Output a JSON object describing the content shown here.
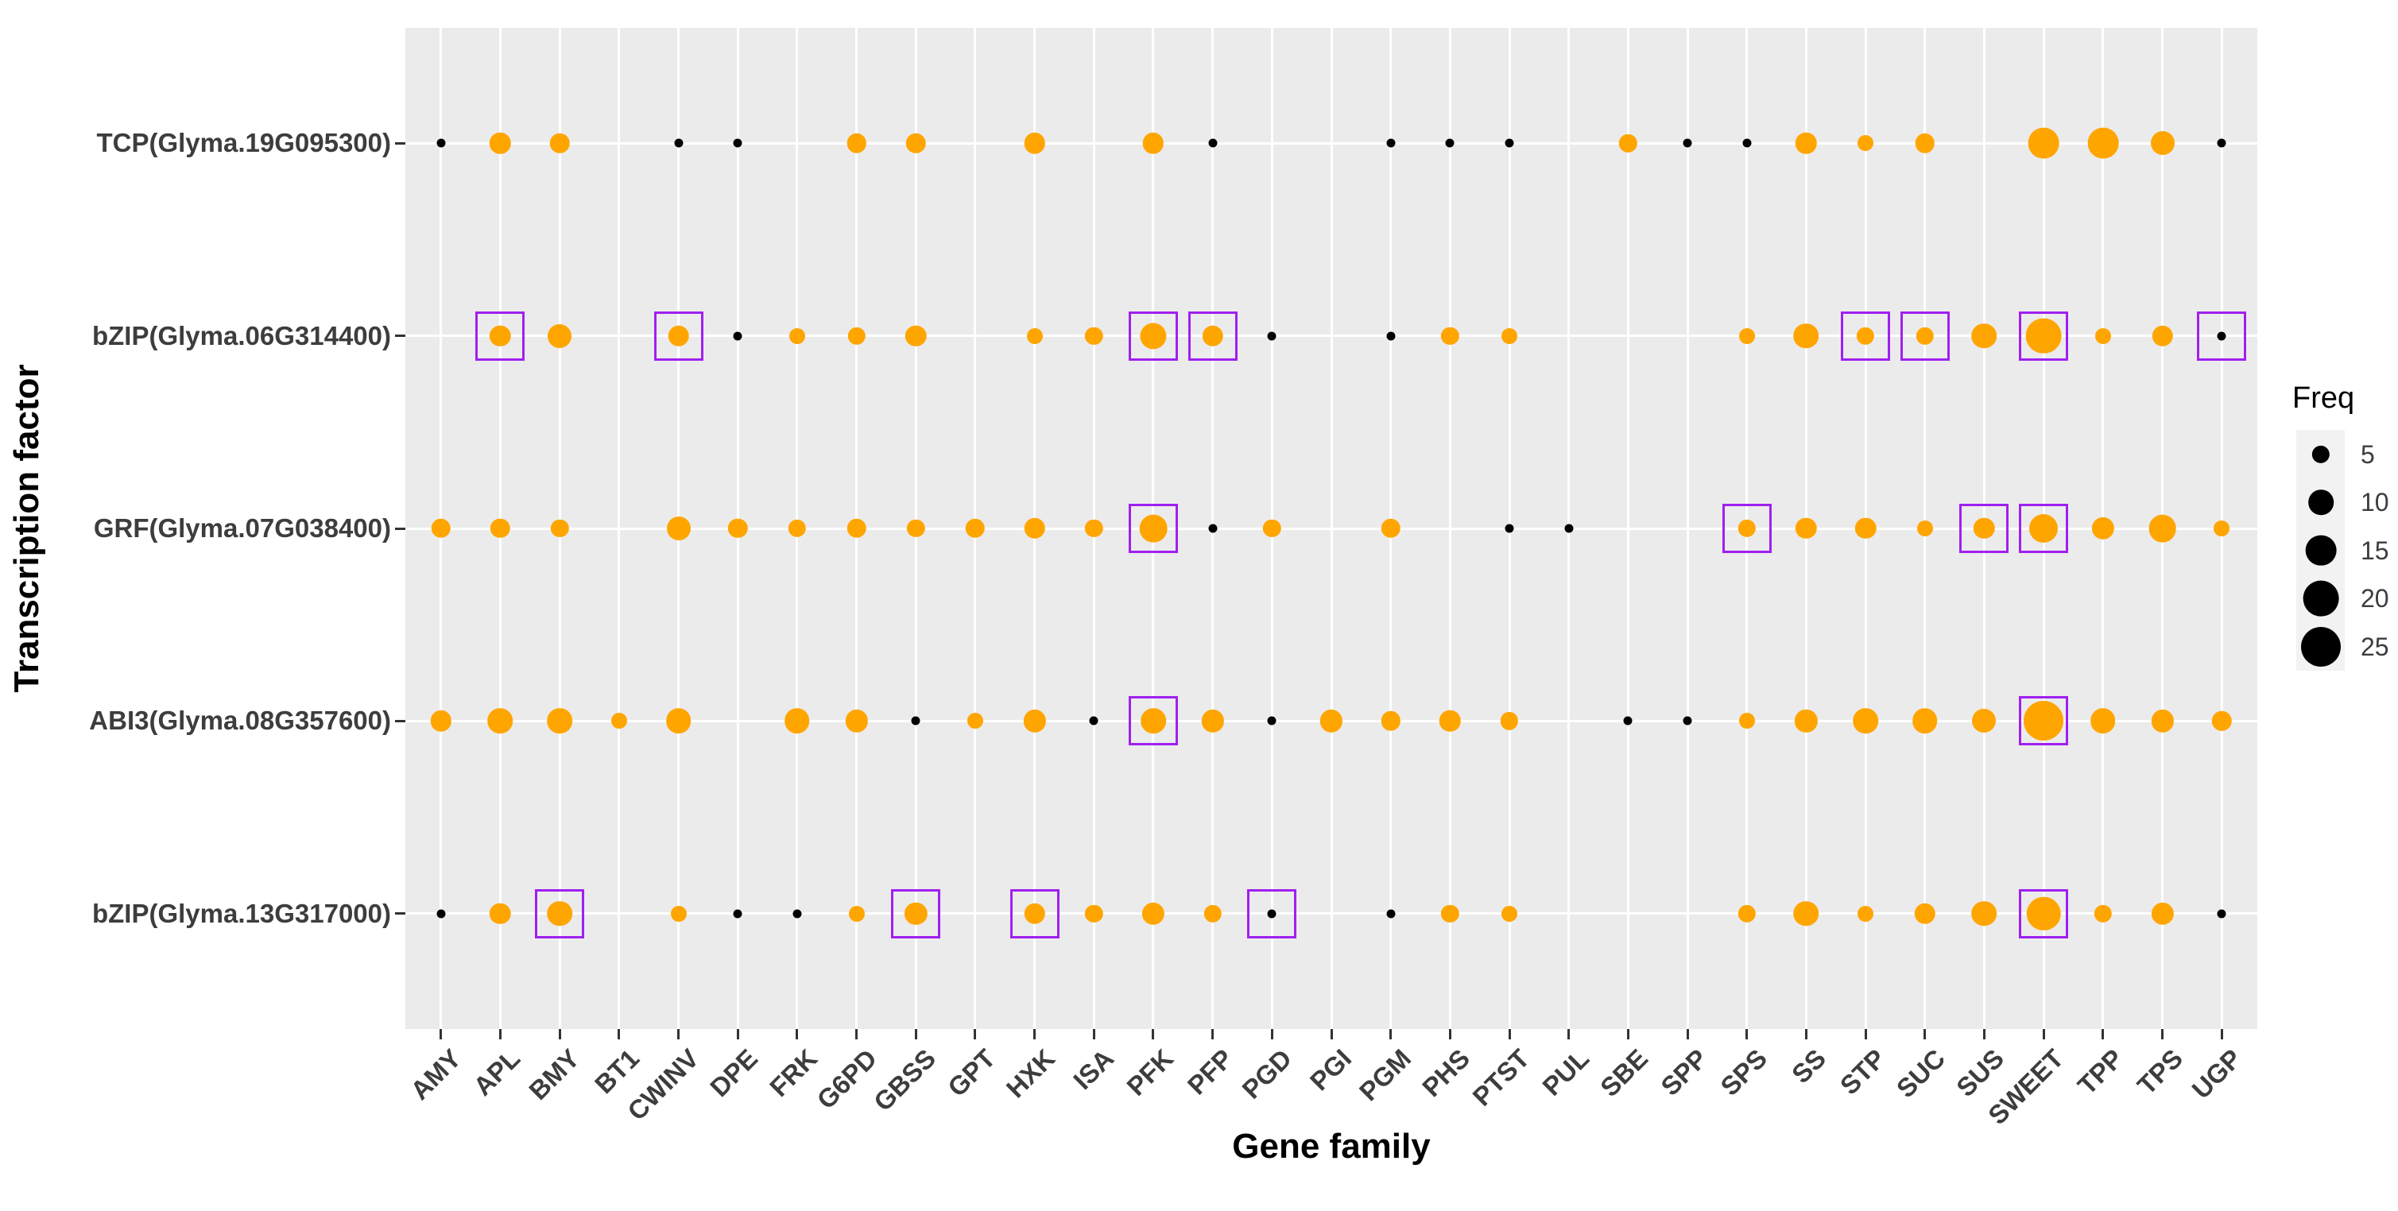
{
  "figure": {
    "y_axis_title": "Transcription factor",
    "x_axis_title": "Gene family",
    "legend_title": "Freq"
  },
  "colors": {
    "orange": "#FFA500",
    "black": "#000000",
    "panel_bg": "#EBEBEB",
    "gridline": "#FFFFFF",
    "highlight_box": "#A020F0",
    "legend_key_bg": "#F2F2F2",
    "axis_text": "#3d3d3d",
    "tick": "#333333"
  },
  "chart_data": {
    "type": "scatter",
    "title": "",
    "xlabel": "Gene family",
    "ylabel": "Transcription factor",
    "grid": true,
    "legend_position": "right",
    "size_legend": {
      "title": "Freq",
      "values": [
        5,
        10,
        15,
        20,
        25
      ]
    },
    "x_categories": [
      "AMY",
      "APL",
      "BMY",
      "BT1",
      "CWINV",
      "DPE",
      "FRK",
      "G6PD",
      "GBSS",
      "GPT",
      "HXK",
      "ISA",
      "PFK",
      "PFP",
      "PGD",
      "PGI",
      "PGM",
      "PHS",
      "PTST",
      "PUL",
      "SBE",
      "SPP",
      "SPS",
      "SS",
      "STP",
      "SUC",
      "SUS",
      "SWEET",
      "TPP",
      "TPS",
      "UGP"
    ],
    "y_categories": [
      "TCP(Glyma.19G095300)",
      "bZIP(Glyma.06G314400)",
      "GRF(Glyma.07G038400)",
      "ABI3(Glyma.08G357600)",
      "bZIP(Glyma.13G317000)"
    ],
    "point_format": [
      "gene",
      "freq",
      "color",
      "boxed"
    ],
    "series": [
      {
        "tf": "TCP(Glyma.19G095300)",
        "points": [
          [
            "AMY",
            1,
            "black",
            false
          ],
          [
            "APL",
            7,
            "orange",
            false
          ],
          [
            "BMY",
            6,
            "orange",
            false
          ],
          [
            "CWINV",
            1,
            "black",
            false
          ],
          [
            "DPE",
            1,
            "black",
            false
          ],
          [
            "G6PD",
            6,
            "orange",
            false
          ],
          [
            "GBSS",
            6,
            "orange",
            false
          ],
          [
            "HXK",
            7,
            "orange",
            false
          ],
          [
            "PFK",
            7,
            "orange",
            false
          ],
          [
            "PFP",
            1,
            "black",
            false
          ],
          [
            "PGM",
            1,
            "black",
            false
          ],
          [
            "PHS",
            1,
            "black",
            false
          ],
          [
            "PTST",
            1,
            "black",
            false
          ],
          [
            "SBE",
            5,
            "orange",
            false
          ],
          [
            "SPP",
            1,
            "black",
            false
          ],
          [
            "SPS",
            1,
            "black",
            false
          ],
          [
            "SS",
            7,
            "orange",
            false
          ],
          [
            "STP",
            4,
            "orange",
            false
          ],
          [
            "SUC",
            6,
            "orange",
            false
          ],
          [
            "SWEET",
            15,
            "orange",
            false
          ],
          [
            "TPP",
            15,
            "orange",
            false
          ],
          [
            "TPS",
            9,
            "orange",
            false
          ],
          [
            "UGP",
            1,
            "black",
            false
          ]
        ]
      },
      {
        "tf": "bZIP(Glyma.06G314400)",
        "points": [
          [
            "APL",
            7,
            "orange",
            true
          ],
          [
            "BMY",
            9,
            "orange",
            false
          ],
          [
            "CWINV",
            7,
            "orange",
            true
          ],
          [
            "DPE",
            1,
            "black",
            false
          ],
          [
            "FRK",
            4,
            "orange",
            false
          ],
          [
            "G6PD",
            5,
            "orange",
            false
          ],
          [
            "GBSS",
            7,
            "orange",
            false
          ],
          [
            "HXK",
            4,
            "orange",
            false
          ],
          [
            "ISA",
            5,
            "orange",
            false
          ],
          [
            "PFK",
            11,
            "orange",
            true
          ],
          [
            "PFP",
            7,
            "orange",
            true
          ],
          [
            "PGD",
            1,
            "black",
            false
          ],
          [
            "PGM",
            1,
            "black",
            false
          ],
          [
            "PHS",
            5,
            "orange",
            false
          ],
          [
            "PTST",
            4,
            "orange",
            false
          ],
          [
            "SPS",
            4,
            "orange",
            false
          ],
          [
            "SS",
            10,
            "orange",
            false
          ],
          [
            "STP",
            5,
            "orange",
            true
          ],
          [
            "SUC",
            5,
            "orange",
            true
          ],
          [
            "SUS",
            10,
            "orange",
            false
          ],
          [
            "SWEET",
            20,
            "orange",
            true
          ],
          [
            "TPP",
            4,
            "orange",
            false
          ],
          [
            "TPS",
            7,
            "orange",
            false
          ],
          [
            "UGP",
            1,
            "black",
            true
          ]
        ]
      },
      {
        "tf": "GRF(Glyma.07G038400)",
        "points": [
          [
            "AMY",
            6,
            "orange",
            false
          ],
          [
            "APL",
            6,
            "orange",
            false
          ],
          [
            "BMY",
            5,
            "orange",
            false
          ],
          [
            "CWINV",
            9,
            "orange",
            false
          ],
          [
            "DPE",
            6,
            "orange",
            false
          ],
          [
            "FRK",
            5,
            "orange",
            false
          ],
          [
            "G6PD",
            6,
            "orange",
            false
          ],
          [
            "GBSS",
            5,
            "orange",
            false
          ],
          [
            "GPT",
            6,
            "orange",
            false
          ],
          [
            "HXK",
            7,
            "orange",
            false
          ],
          [
            "ISA",
            5,
            "orange",
            false
          ],
          [
            "PFK",
            12,
            "orange",
            true
          ],
          [
            "PFP",
            1,
            "black",
            false
          ],
          [
            "PGD",
            5,
            "orange",
            false
          ],
          [
            "PGM",
            6,
            "orange",
            false
          ],
          [
            "PTST",
            1,
            "black",
            false
          ],
          [
            "PUL",
            1,
            "black",
            false
          ],
          [
            "SPS",
            5,
            "orange",
            true
          ],
          [
            "SS",
            7,
            "orange",
            false
          ],
          [
            "STP",
            7,
            "orange",
            false
          ],
          [
            "SUC",
            4,
            "orange",
            false
          ],
          [
            "SUS",
            7,
            "orange",
            true
          ],
          [
            "SWEET",
            13,
            "orange",
            true
          ],
          [
            "TPP",
            8,
            "orange",
            false
          ],
          [
            "TPS",
            12,
            "orange",
            false
          ],
          [
            "UGP",
            4,
            "orange",
            false
          ]
        ]
      },
      {
        "tf": "ABI3(Glyma.08G357600)",
        "points": [
          [
            "AMY",
            7,
            "orange",
            false
          ],
          [
            "APL",
            10,
            "orange",
            false
          ],
          [
            "BMY",
            10,
            "orange",
            false
          ],
          [
            "BT1",
            4,
            "orange",
            false
          ],
          [
            "CWINV",
            10,
            "orange",
            false
          ],
          [
            "FRK",
            10,
            "orange",
            false
          ],
          [
            "G6PD",
            8,
            "orange",
            false
          ],
          [
            "GBSS",
            1,
            "black",
            false
          ],
          [
            "GPT",
            4,
            "orange",
            false
          ],
          [
            "HXK",
            8,
            "orange",
            false
          ],
          [
            "ISA",
            1,
            "black",
            false
          ],
          [
            "PFK",
            10,
            "orange",
            true
          ],
          [
            "PFP",
            8,
            "orange",
            false
          ],
          [
            "PGD",
            1,
            "black",
            false
          ],
          [
            "PGI",
            8,
            "orange",
            false
          ],
          [
            "PGM",
            6,
            "orange",
            false
          ],
          [
            "PHS",
            7,
            "orange",
            false
          ],
          [
            "PTST",
            5,
            "orange",
            false
          ],
          [
            "SBE",
            1,
            "black",
            false
          ],
          [
            "SPP",
            1,
            "black",
            false
          ],
          [
            "SPS",
            4,
            "orange",
            false
          ],
          [
            "SS",
            8,
            "orange",
            false
          ],
          [
            "STP",
            10,
            "orange",
            false
          ],
          [
            "SUC",
            10,
            "orange",
            false
          ],
          [
            "SUS",
            9,
            "orange",
            false
          ],
          [
            "SWEET",
            25,
            "orange",
            true
          ],
          [
            "TPP",
            10,
            "orange",
            false
          ],
          [
            "TPS",
            8,
            "orange",
            false
          ],
          [
            "UGP",
            6,
            "orange",
            false
          ]
        ]
      },
      {
        "tf": "bZIP(Glyma.13G317000)",
        "points": [
          [
            "AMY",
            1,
            "black",
            false
          ],
          [
            "APL",
            7,
            "orange",
            false
          ],
          [
            "BMY",
            10,
            "orange",
            true
          ],
          [
            "CWINV",
            4,
            "orange",
            false
          ],
          [
            "DPE",
            1,
            "black",
            false
          ],
          [
            "FRK",
            1,
            "black",
            false
          ],
          [
            "G6PD",
            4,
            "orange",
            false
          ],
          [
            "GBSS",
            8,
            "orange",
            true
          ],
          [
            "HXK",
            7,
            "orange",
            true
          ],
          [
            "ISA",
            5,
            "orange",
            false
          ],
          [
            "PFK",
            8,
            "orange",
            false
          ],
          [
            "PFP",
            5,
            "orange",
            false
          ],
          [
            "PGD",
            1,
            "black",
            true
          ],
          [
            "PGM",
            1,
            "black",
            false
          ],
          [
            "PHS",
            5,
            "orange",
            false
          ],
          [
            "PTST",
            4,
            "orange",
            false
          ],
          [
            "SPS",
            5,
            "orange",
            false
          ],
          [
            "SS",
            10,
            "orange",
            false
          ],
          [
            "STP",
            4,
            "orange",
            false
          ],
          [
            "SUC",
            7,
            "orange",
            false
          ],
          [
            "SUS",
            10,
            "orange",
            false
          ],
          [
            "SWEET",
            18,
            "orange",
            true
          ],
          [
            "TPP",
            5,
            "orange",
            false
          ],
          [
            "TPS",
            8,
            "orange",
            false
          ],
          [
            "UGP",
            1,
            "black",
            false
          ]
        ]
      }
    ]
  }
}
